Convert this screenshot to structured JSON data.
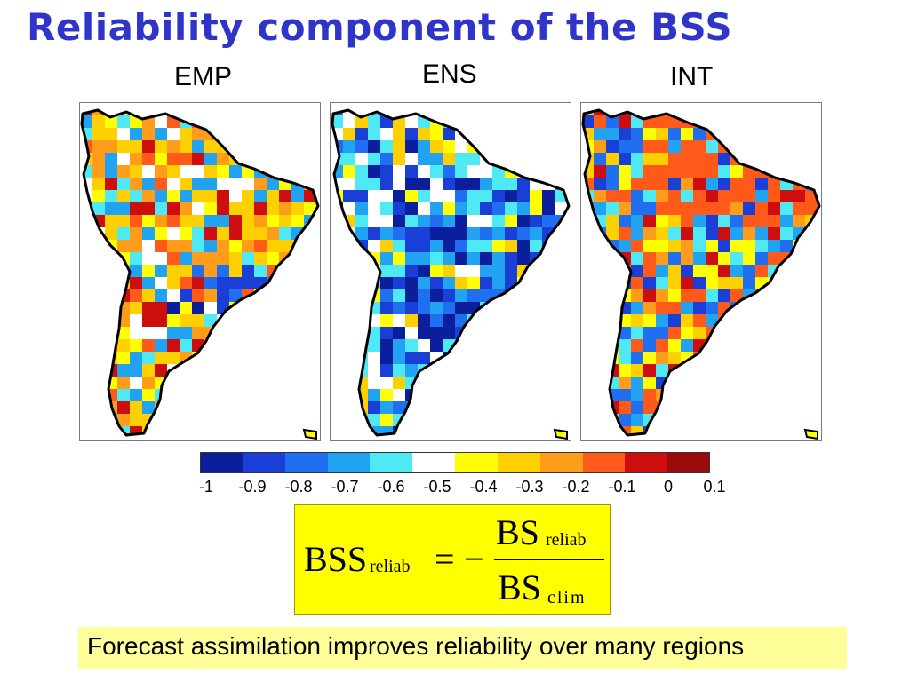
{
  "slide": {
    "title": "Reliability component of the BSS",
    "caption": "Forecast assimilation improves reliability over many regions"
  },
  "panels": [
    {
      "label": "EMP"
    },
    {
      "label": "ENS"
    },
    {
      "label": "INT"
    }
  ],
  "colorbar": {
    "tick_labels": [
      "-1",
      "-0.9",
      "-0.8",
      "-0.7",
      "-0.6",
      "-0.5",
      "-0.4",
      "-0.3",
      "-0.2",
      "-0.1",
      "0",
      "0.1"
    ],
    "colors": [
      "#0b1f9c",
      "#1a3fd6",
      "#1f6ff0",
      "#22a3f2",
      "#4fe8f5",
      "#ffffff",
      "#ffff00",
      "#ffd000",
      "#ff9d1a",
      "#ff5a1a",
      "#cc0e0e",
      "#9a0a0a"
    ]
  },
  "formula": {
    "lhs": "BSS",
    "lhs_sub": "reliab",
    "equals": "=",
    "minus": "−",
    "num": "BS",
    "num_sub": "reliab",
    "den": "BS",
    "den_sub": "clim"
  }
}
